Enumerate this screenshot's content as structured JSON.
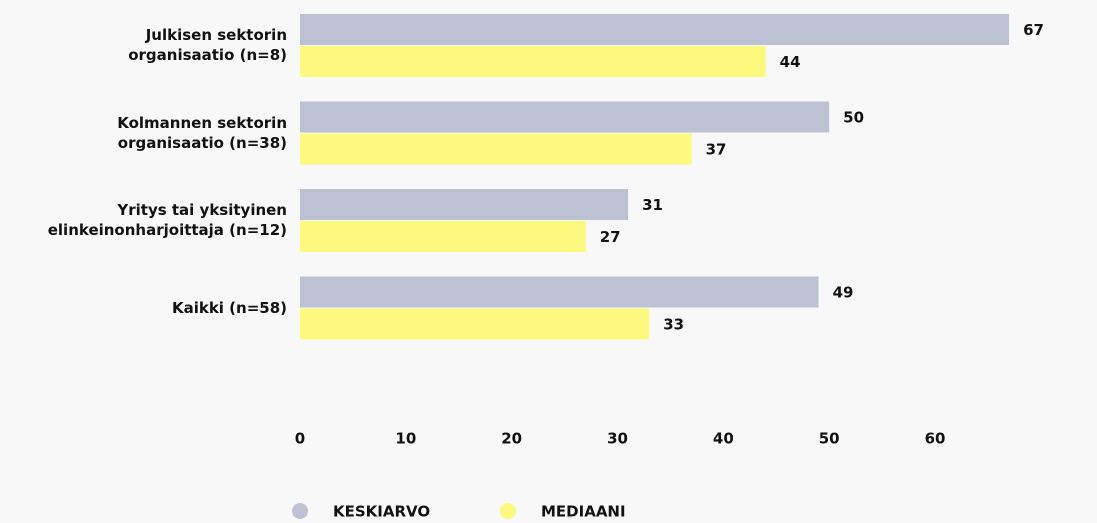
{
  "chart_data": {
    "type": "hbar",
    "categories": [
      "Julkisen sektorin\norganisaatio (n=8)",
      "Kolmannen sektorin\norganisaatio (n=38)",
      "Yritys tai yksityinen\nelinkeinonharjoittaja (n=12)",
      "Kaikki (n=58)"
    ],
    "series": [
      {
        "name": "KESKIARVO",
        "color": "#bcc1d4",
        "values": [
          67,
          50,
          31,
          49
        ]
      },
      {
        "name": "MEDIAANI",
        "color": "#fdf87e",
        "values": [
          44,
          37,
          27,
          33
        ]
      }
    ],
    "xlim": [
      0,
      72
    ],
    "xticks": [
      0,
      10,
      20,
      30,
      40,
      50,
      60
    ],
    "grid": false,
    "legend": "bottom"
  }
}
